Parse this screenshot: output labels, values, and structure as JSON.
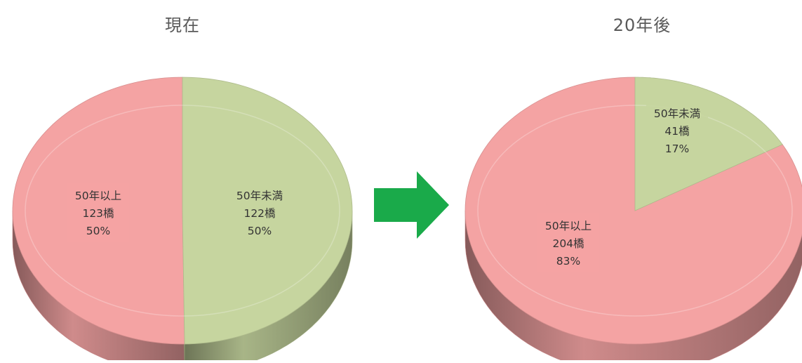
{
  "chart_data": [
    {
      "type": "pie",
      "title": "現在",
      "slices": [
        {
          "label": "50年以上",
          "count": "123橋",
          "percent": "50%",
          "value": 123,
          "color": "#f4a3a3"
        },
        {
          "label": "50年未満",
          "count": "122橋",
          "percent": "50%",
          "value": 122,
          "color": "#c6d59f"
        }
      ]
    },
    {
      "type": "pie",
      "title": "20年後",
      "slices": [
        {
          "label": "50年以上",
          "count": "204橋",
          "percent": "83%",
          "value": 204,
          "color": "#f4a3a3"
        },
        {
          "label": "50年未満",
          "count": "41橋",
          "percent": "17%",
          "value": 41,
          "color": "#c6d59f"
        }
      ]
    }
  ],
  "arrow": {
    "icon": "right-arrow-icon",
    "color": "#1aaa4a"
  }
}
